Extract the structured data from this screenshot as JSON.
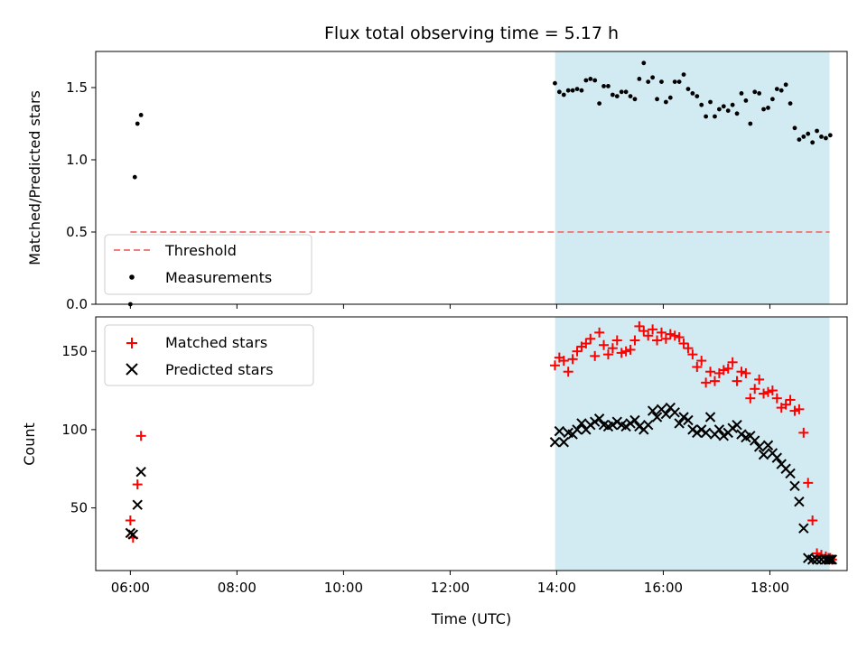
{
  "chart_data": {
    "title": "Flux total observing time = 5.17 h",
    "xlabel": "Time (UTC)",
    "x_ticks": [
      "06:00",
      "08:00",
      "10:00",
      "12:00",
      "14:00",
      "16:00",
      "18:00"
    ],
    "x_range_hours": [
      5.35,
      19.45
    ],
    "shaded_interval_hours": [
      13.97,
      19.12
    ],
    "shade_color": "#add8e6",
    "panels": [
      {
        "type": "scatter",
        "ylabel": "Matched/Predicted stars",
        "ylim": [
          0,
          1.75
        ],
        "y_ticks": [
          0.0,
          0.5,
          1.0,
          1.5
        ],
        "y_tick_labels": [
          "0.0",
          "0.5",
          "1.0",
          "1.5"
        ],
        "threshold": {
          "name": "Threshold",
          "value": 0.5,
          "color": "#f08080",
          "style": "dashed"
        },
        "legend": {
          "position": "lower-left",
          "entries": [
            "Threshold",
            "Measurements"
          ]
        },
        "series": [
          {
            "name": "Measurements",
            "color": "#000000",
            "marker": "dot",
            "x": [
              "06:00",
              "06:05",
              "06:08",
              "06:12",
              "13:58",
              "14:03",
              "14:08",
              "14:13",
              "14:18",
              "14:23",
              "14:28",
              "14:33",
              "14:38",
              "14:43",
              "14:48",
              "14:53",
              "14:58",
              "15:03",
              "15:08",
              "15:13",
              "15:18",
              "15:23",
              "15:28",
              "15:33",
              "15:38",
              "15:43",
              "15:48",
              "15:53",
              "15:58",
              "16:03",
              "16:08",
              "16:13",
              "16:18",
              "16:23",
              "16:28",
              "16:33",
              "16:38",
              "16:43",
              "16:48",
              "16:53",
              "16:58",
              "17:03",
              "17:08",
              "17:13",
              "17:18",
              "17:23",
              "17:28",
              "17:33",
              "17:38",
              "17:43",
              "17:48",
              "17:53",
              "17:58",
              "18:03",
              "18:08",
              "18:13",
              "18:18",
              "18:23",
              "18:28",
              "18:33",
              "18:38",
              "18:43",
              "18:48",
              "18:53",
              "18:58",
              "19:03",
              "19:08"
            ],
            "y": [
              0.0,
              0.88,
              1.25,
              1.31,
              1.53,
              1.47,
              1.45,
              1.48,
              1.48,
              1.49,
              1.48,
              1.55,
              1.56,
              1.55,
              1.39,
              1.51,
              1.51,
              1.45,
              1.44,
              1.47,
              1.47,
              1.44,
              1.42,
              1.56,
              1.67,
              1.54,
              1.57,
              1.42,
              1.54,
              1.4,
              1.43,
              1.54,
              1.54,
              1.59,
              1.49,
              1.46,
              1.44,
              1.38,
              1.3,
              1.4,
              1.3,
              1.35,
              1.37,
              1.34,
              1.38,
              1.32,
              1.46,
              1.41,
              1.25,
              1.47,
              1.46,
              1.35,
              1.36,
              1.42,
              1.49,
              1.48,
              1.52,
              1.39,
              1.22,
              1.14,
              1.16,
              1.18,
              1.12,
              1.2,
              1.16,
              1.15,
              1.17
            ]
          }
        ]
      },
      {
        "type": "scatter",
        "ylabel": "Count",
        "ylim": [
          10,
          172
        ],
        "y_ticks": [
          50,
          100,
          150
        ],
        "y_tick_labels": [
          "50",
          "100",
          "150"
        ],
        "legend": {
          "position": "upper-left",
          "entries": [
            "Matched stars",
            "Predicted stars"
          ]
        },
        "series": [
          {
            "name": "Matched stars",
            "color": "#ff0000",
            "marker": "plus",
            "x": [
              "06:00",
              "06:03",
              "06:08",
              "06:12",
              "13:58",
              "14:03",
              "14:08",
              "14:13",
              "14:18",
              "14:23",
              "14:28",
              "14:33",
              "14:38",
              "14:43",
              "14:48",
              "14:53",
              "14:58",
              "15:03",
              "15:08",
              "15:13",
              "15:18",
              "15:23",
              "15:28",
              "15:33",
              "15:38",
              "15:43",
              "15:48",
              "15:53",
              "15:58",
              "16:03",
              "16:08",
              "16:13",
              "16:18",
              "16:23",
              "16:28",
              "16:33",
              "16:38",
              "16:43",
              "16:48",
              "16:53",
              "16:58",
              "17:03",
              "17:08",
              "17:13",
              "17:18",
              "17:23",
              "17:28",
              "17:33",
              "17:38",
              "17:43",
              "17:48",
              "17:53",
              "17:58",
              "18:03",
              "18:08",
              "18:13",
              "18:18",
              "18:23",
              "18:28",
              "18:33",
              "18:38",
              "18:43",
              "18:48",
              "18:53",
              "18:58",
              "19:03",
              "19:06",
              "19:08",
              "19:10"
            ],
            "y": [
              42,
              31,
              65,
              96,
              141,
              146,
              144,
              137,
              145,
              150,
              153,
              155,
              158,
              147,
              162,
              154,
              148,
              152,
              157,
              149,
              150,
              151,
              157,
              166,
              163,
              160,
              164,
              157,
              162,
              158,
              161,
              160,
              159,
              155,
              152,
              148,
              140,
              144,
              130,
              137,
              131,
              136,
              138,
              139,
              143,
              131,
              137,
              136,
              120,
              126,
              132,
              123,
              124,
              125,
              120,
              114,
              116,
              119,
              112,
              113,
              98,
              66,
              42,
              21,
              20,
              19,
              18,
              18,
              17
            ]
          },
          {
            "name": "Predicted stars",
            "color": "#000000",
            "marker": "x",
            "x": [
              "06:00",
              "06:03",
              "06:08",
              "06:12",
              "13:58",
              "14:03",
              "14:08",
              "14:13",
              "14:18",
              "14:23",
              "14:28",
              "14:33",
              "14:38",
              "14:43",
              "14:48",
              "14:53",
              "14:58",
              "15:03",
              "15:08",
              "15:13",
              "15:18",
              "15:23",
              "15:28",
              "15:33",
              "15:38",
              "15:43",
              "15:48",
              "15:53",
              "15:58",
              "16:03",
              "16:08",
              "16:13",
              "16:18",
              "16:23",
              "16:28",
              "16:33",
              "16:38",
              "16:43",
              "16:48",
              "16:53",
              "16:58",
              "17:03",
              "17:08",
              "17:13",
              "17:18",
              "17:23",
              "17:28",
              "17:33",
              "17:38",
              "17:43",
              "17:48",
              "17:53",
              "17:58",
              "18:03",
              "18:08",
              "18:13",
              "18:18",
              "18:23",
              "18:28",
              "18:33",
              "18:38",
              "18:43",
              "18:48",
              "18:53",
              "18:58",
              "19:03",
              "19:06",
              "19:08",
              "19:10"
            ],
            "y": [
              34,
              33,
              52,
              73,
              92,
              99,
              92,
              98,
              97,
              100,
              104,
              100,
              103,
              105,
              107,
              103,
              102,
              103,
              105,
              103,
              102,
              104,
              106,
              102,
              100,
              103,
              112,
              108,
              113,
              110,
              114,
              111,
              104,
              108,
              106,
              100,
              98,
              100,
              98,
              108,
              97,
              100,
              96,
              98,
              101,
              103,
              97,
              95,
              96,
              93,
              89,
              84,
              90,
              85,
              82,
              78,
              75,
              72,
              64,
              54,
              37,
              18,
              17,
              17,
              17,
              17,
              17,
              17,
              17
            ]
          }
        ]
      }
    ]
  }
}
